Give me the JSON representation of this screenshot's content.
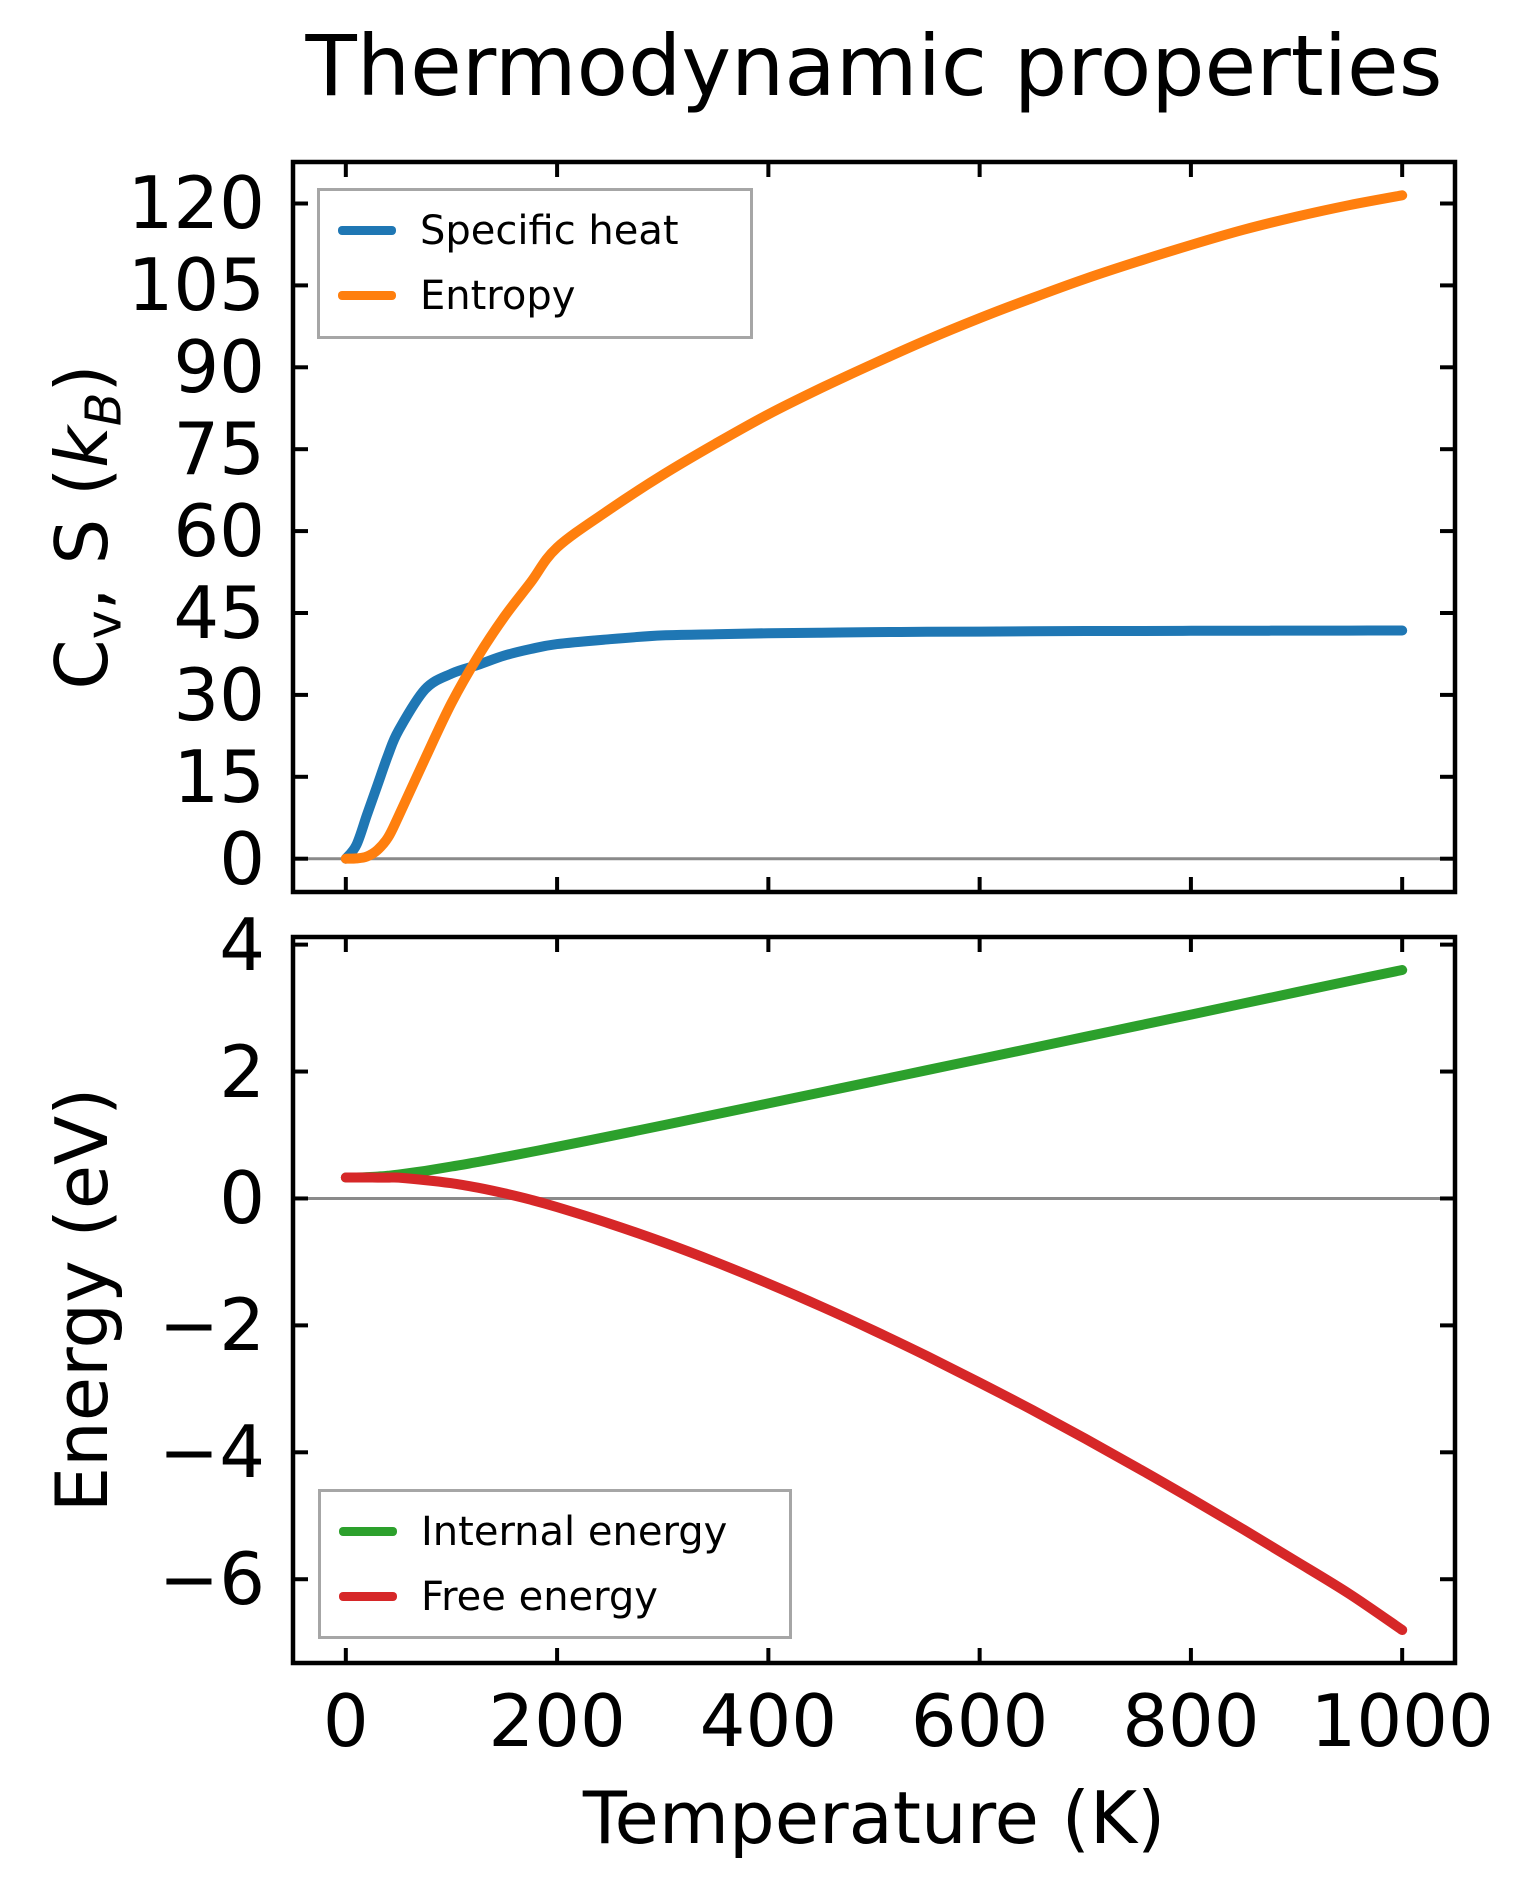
{
  "figure": {
    "background": "#ffffff",
    "frame_color": "#000000",
    "zero_line_color": "#8a8a8a",
    "legend_border_color": "#a6a6a6"
  },
  "chart_data": [
    {
      "type": "line",
      "title": "Thermodynamic properties",
      "ylabel": "Cv, S (kB)",
      "ylabel_rich": [
        {
          "t": "C"
        },
        {
          "t": "v",
          "sub": 1
        },
        {
          "t": ", S ("
        },
        {
          "t": "k",
          "i": 1
        },
        {
          "t": "B",
          "sub": 1,
          "i": 1
        },
        {
          "t": ")"
        }
      ],
      "xlim": [
        -50,
        1050
      ],
      "ylim": [
        -6.1,
        127.6
      ],
      "xticks": [
        0,
        200,
        400,
        600,
        800,
        1000
      ],
      "yticks": [
        0,
        15,
        30,
        45,
        60,
        75,
        90,
        105,
        120
      ],
      "ytick_labels": [
        "0",
        "15",
        "30",
        "45",
        "60",
        "75",
        "90",
        "105",
        "120"
      ],
      "grid": false,
      "zero_line": 0,
      "legend_position": "upper-left",
      "x": [
        0,
        10,
        20,
        30,
        40,
        50,
        75,
        100,
        125,
        150,
        175,
        200,
        250,
        300,
        350,
        400,
        450,
        500,
        550,
        600,
        650,
        700,
        750,
        800,
        850,
        900,
        950,
        1000
      ],
      "series": [
        {
          "name": "Specific heat",
          "color": "#1f77b4",
          "values": [
            0,
            2.5,
            8,
            13.5,
            19,
            23.5,
            31,
            33.9,
            35.5,
            37.2,
            38.4,
            39.3,
            40.2,
            40.9,
            41.1,
            41.3,
            41.4,
            41.5,
            41.55,
            41.6,
            41.65,
            41.7,
            41.7,
            41.73,
            41.75,
            41.77,
            41.78,
            41.8
          ]
        },
        {
          "name": "Entropy",
          "color": "#ff7f0e",
          "values": [
            0,
            0.05,
            0.4,
            1.6,
            3.9,
            7.8,
            18.3,
            28.5,
            37,
            44.3,
            50.6,
            57,
            64,
            70.3,
            76,
            81.4,
            86.2,
            90.7,
            95,
            99,
            102.7,
            106.2,
            109.4,
            112.4,
            115.2,
            117.6,
            119.7,
            121.5
          ]
        }
      ]
    },
    {
      "type": "line",
      "xlabel": "Temperature (K)",
      "ylabel": "Energy (eV)",
      "xlim": [
        -50,
        1050
      ],
      "ylim": [
        -7.32,
        4.12
      ],
      "xticks": [
        0,
        200,
        400,
        600,
        800,
        1000
      ],
      "xtick_labels": [
        "0",
        "200",
        "400",
        "600",
        "800",
        "1000"
      ],
      "yticks": [
        4,
        2,
        0,
        -2,
        -4,
        -6
      ],
      "ytick_labels": [
        "4",
        "2",
        "0",
        "−2",
        "−4",
        "−6"
      ],
      "grid": false,
      "zero_line": 0,
      "legend_position": "lower-left",
      "x": [
        0,
        10,
        20,
        30,
        40,
        50,
        75,
        100,
        125,
        150,
        175,
        200,
        250,
        300,
        350,
        400,
        450,
        500,
        550,
        600,
        650,
        700,
        750,
        800,
        850,
        900,
        950,
        1000
      ],
      "series": [
        {
          "name": "Internal energy",
          "color": "#2ca02c",
          "values": [
            0.33,
            0.331,
            0.336,
            0.344,
            0.358,
            0.376,
            0.435,
            0.503,
            0.575,
            0.652,
            0.732,
            0.814,
            0.981,
            1.152,
            1.325,
            1.498,
            1.671,
            1.846,
            2.021,
            2.196,
            2.371,
            2.547,
            2.723,
            2.898,
            3.074,
            3.25,
            3.426,
            3.6
          ]
        },
        {
          "name": "Free energy",
          "color": "#d62728",
          "values": [
            0.33,
            0.33,
            0.33,
            0.329,
            0.329,
            0.328,
            0.29,
            0.24,
            0.169,
            0.082,
            -0.02,
            -0.136,
            -0.397,
            -0.686,
            -1.002,
            -1.341,
            -1.702,
            -2.083,
            -2.483,
            -2.901,
            -3.335,
            -3.786,
            -4.25,
            -4.728,
            -5.218,
            -5.72,
            -6.231,
            -6.8
          ]
        }
      ]
    }
  ]
}
